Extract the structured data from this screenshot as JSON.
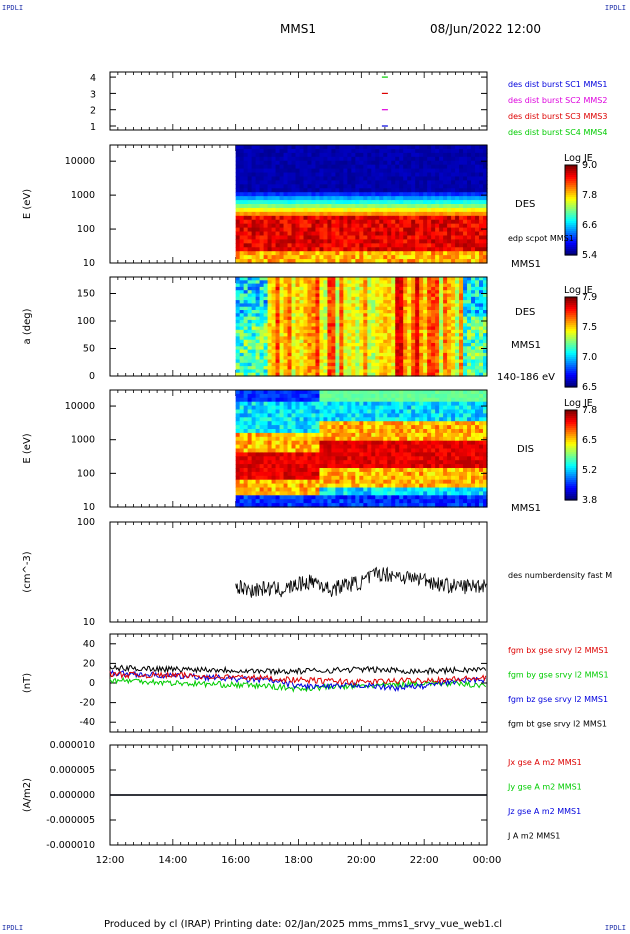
{
  "corners": {
    "tl": "IPDLI",
    "tr": "IPDLI",
    "bl": "IPDLI",
    "br": "IPDLI"
  },
  "header": {
    "title": "MMS1",
    "datetime": "08/Jun/2022 12:00"
  },
  "footer": {
    "text": "Produced by cl (IRAP)   Printing date: 02/Jan/2025   mms_mms1_srvy_vue_web1.cl"
  },
  "colors": {
    "red": "#dd0000",
    "green": "#00cc00",
    "blue": "#0000dd",
    "magenta": "#dd00dd",
    "black": "#000000"
  },
  "chart_data": [
    {
      "type": "scatter",
      "panel": "availability",
      "yticks": [
        "1",
        "2",
        "3",
        "4"
      ],
      "xticks": [
        "12:00",
        "14:00",
        "16:00",
        "18:00",
        "20:00",
        "22:00",
        "00:00"
      ],
      "markers": [
        {
          "x": "20:45",
          "y": 4,
          "color": "#00cc00"
        },
        {
          "x": "20:45",
          "y": 3,
          "color": "#dd0000"
        },
        {
          "x": "20:45",
          "y": 2,
          "color": "#dd00dd"
        },
        {
          "x": "20:45",
          "y": 1,
          "color": "#0000dd"
        }
      ],
      "legend": [
        {
          "label": "des dist burst SC1 MMS1",
          "color": "#0000dd"
        },
        {
          "label": "des dist burst SC2 MMS2",
          "color": "#dd00dd"
        },
        {
          "label": "des dist burst SC3 MMS3",
          "color": "#dd0000"
        },
        {
          "label": "des dist burst SC4 MMS4",
          "color": "#00cc00"
        }
      ]
    },
    {
      "type": "heatmap",
      "panel": "des-energy",
      "ylabel": "E (eV)",
      "yscale": "log",
      "ylim": [
        10,
        30000
      ],
      "yticks": [
        "10",
        "100",
        "1000",
        "10000"
      ],
      "data_start": "16:00",
      "side_labels": [
        "DES",
        "edp scpot MMS1",
        "MMS1"
      ],
      "colorbar": {
        "title": "Log JE",
        "ticks": [
          "9.0",
          "7.8",
          "6.6",
          "5.4"
        ]
      }
    },
    {
      "type": "heatmap",
      "panel": "des-pitch",
      "ylabel": "a (deg)",
      "ylim": [
        0,
        180
      ],
      "yticks": [
        "0",
        "50",
        "100",
        "150"
      ],
      "data_start": "16:00",
      "side_labels": [
        "DES",
        "MMS1",
        "140-186 eV"
      ],
      "colorbar": {
        "title": "Log JE",
        "ticks": [
          "7.9",
          "7.5",
          "7.0",
          "6.5"
        ]
      }
    },
    {
      "type": "heatmap",
      "panel": "dis-energy",
      "ylabel": "E (eV)",
      "yscale": "log",
      "ylim": [
        10,
        30000
      ],
      "yticks": [
        "10",
        "100",
        "1000",
        "10000"
      ],
      "data_start": "16:00",
      "side_labels": [
        "DIS",
        "MMS1"
      ],
      "colorbar": {
        "title": "Log JE",
        "ticks": [
          "7.8",
          "6.5",
          "5.2",
          "3.8"
        ]
      }
    },
    {
      "type": "line",
      "panel": "density",
      "ylabel": "(cm^-3)",
      "yscale": "log",
      "ylim": [
        10,
        100
      ],
      "yticks": [
        "10",
        "100"
      ],
      "series": [
        {
          "name": "des numberdensity fast M",
          "color": "#000000",
          "x": [
            "16:00",
            "16:30",
            "17:00",
            "17:30",
            "18:00",
            "18:30",
            "19:00",
            "19:30",
            "20:00",
            "20:30",
            "21:00",
            "21:30",
            "22:00",
            "22:30",
            "23:00",
            "23:30",
            "00:00"
          ],
          "y": [
            23,
            21,
            22,
            21,
            24,
            26,
            21,
            24,
            25,
            31,
            30,
            28,
            27,
            24,
            23,
            23,
            24
          ]
        }
      ]
    },
    {
      "type": "line",
      "panel": "magnetic-field",
      "ylabel": "(nT)",
      "ylim": [
        -50,
        50
      ],
      "yticks": [
        "-40",
        "-20",
        "0",
        "20",
        "40"
      ],
      "series": [
        {
          "name": "fgm bx gse srvy l2 MMS1",
          "color": "#dd0000",
          "x": [
            "12:00",
            "13:00",
            "14:00",
            "15:00",
            "16:00",
            "17:00",
            "18:00",
            "19:00",
            "20:00",
            "21:00",
            "22:00",
            "23:00",
            "00:00"
          ],
          "y": [
            9,
            8,
            8,
            7,
            6,
            5,
            3,
            2,
            1,
            2,
            3,
            4,
            5
          ]
        },
        {
          "name": "fgm by gse srvy l2 MMS1",
          "color": "#00cc00",
          "x": [
            "12:00",
            "13:00",
            "14:00",
            "15:00",
            "16:00",
            "17:00",
            "18:00",
            "19:00",
            "20:00",
            "21:00",
            "22:00",
            "23:00",
            "00:00"
          ],
          "y": [
            3,
            2,
            0,
            -1,
            -2,
            -3,
            -6,
            -4,
            -3,
            -2,
            0,
            -1,
            -2
          ]
        },
        {
          "name": "fgm bz gse srvy l2 MMS1",
          "color": "#0000dd",
          "x": [
            "12:00",
            "13:00",
            "14:00",
            "15:00",
            "16:00",
            "17:00",
            "18:00",
            "19:00",
            "20:00",
            "21:00",
            "22:00",
            "23:00",
            "00:00"
          ],
          "y": [
            10,
            9,
            7,
            6,
            4,
            3,
            -3,
            -4,
            -2,
            -5,
            -3,
            2,
            4
          ]
        },
        {
          "name": "fgm bt gse srvy l2 MMS1",
          "color": "#000000",
          "x": [
            "12:00",
            "13:00",
            "14:00",
            "15:00",
            "16:00",
            "17:00",
            "18:00",
            "19:00",
            "20:00",
            "21:00",
            "22:00",
            "23:00",
            "00:00"
          ],
          "y": [
            15,
            15,
            14,
            14,
            13,
            12,
            12,
            13,
            14,
            13,
            12,
            13,
            14
          ]
        }
      ]
    },
    {
      "type": "line",
      "panel": "current-density",
      "ylabel": "(A/m2)",
      "ylim": [
        -1e-05,
        1e-05
      ],
      "yticks": [
        "0.000010",
        "0.000005",
        "0.000000",
        "-0.000005",
        "-0.000010"
      ],
      "xticks": [
        "12:00",
        "14:00",
        "16:00",
        "18:00",
        "20:00",
        "22:00",
        "00:00"
      ],
      "series": [
        {
          "name": "Jx gse A m2 MMS1",
          "color": "#dd0000",
          "x": [
            "12:00",
            "00:00"
          ],
          "y": [
            0,
            0
          ]
        },
        {
          "name": "Jy gse A m2 MMS1",
          "color": "#00cc00",
          "x": [
            "12:00",
            "00:00"
          ],
          "y": [
            0,
            0
          ]
        },
        {
          "name": "Jz gse A m2 MMS1",
          "color": "#0000dd",
          "x": [
            "12:00",
            "00:00"
          ],
          "y": [
            0,
            0
          ]
        },
        {
          "name": "J A m2 MMS1",
          "color": "#000000",
          "x": [
            "12:00",
            "00:00"
          ],
          "y": [
            0,
            0
          ]
        }
      ]
    }
  ]
}
